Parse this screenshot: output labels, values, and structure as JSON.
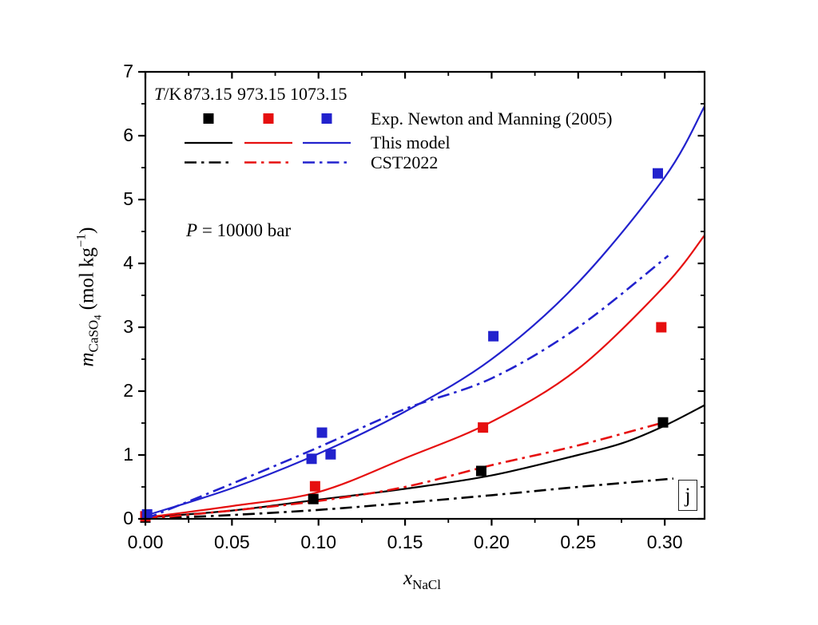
{
  "chart_data": {
    "type": "scatter+line",
    "annotation": {
      "var": "P",
      "rest": " = 10000 bar"
    },
    "xlabel": {
      "var": "x",
      "sub": "NaCl"
    },
    "ylabel": {
      "var": "m",
      "sub": "CaSO",
      "subnum": "4",
      "unit_open": "(mol kg",
      "sup": "−1",
      "unit_close": ")"
    },
    "corner_label": "j",
    "colors": {
      "k873": "#000000",
      "k973": "#e60f0f",
      "k1073": "#2222cd",
      "axis": "#000000"
    },
    "axes": {
      "xlim": [
        0,
        0.323
      ],
      "ylim": [
        0,
        7
      ],
      "x_major": [
        {
          "v": 0.0,
          "label": "0.00"
        },
        {
          "v": 0.05,
          "label": "0.05"
        },
        {
          "v": 0.1,
          "label": "0.10"
        },
        {
          "v": 0.15,
          "label": "0.15"
        },
        {
          "v": 0.2,
          "label": "0.20"
        },
        {
          "v": 0.25,
          "label": "0.25"
        },
        {
          "v": 0.3,
          "label": "0.30"
        }
      ],
      "x_minor": [
        0.025,
        0.075,
        0.125,
        0.175,
        0.225,
        0.275
      ],
      "y_major": [
        {
          "v": 0,
          "label": "0"
        },
        {
          "v": 1,
          "label": "1"
        },
        {
          "v": 2,
          "label": "2"
        },
        {
          "v": 3,
          "label": "3"
        },
        {
          "v": 4,
          "label": "4"
        },
        {
          "v": 5,
          "label": "5"
        },
        {
          "v": 6,
          "label": "6"
        },
        {
          "v": 7,
          "label": "7"
        }
      ],
      "y_minor": [
        0.5,
        1.5,
        2.5,
        3.5,
        4.5,
        5.5,
        6.5
      ]
    },
    "legend": {
      "t_var": "T",
      "t_rest": "/K",
      "temps": [
        "873.15",
        "973.15",
        "1073.15"
      ],
      "colors": [
        "#000000",
        "#e60f0f",
        "#2222cd"
      ],
      "entries": [
        {
          "marker": "square",
          "label": "Exp. Newton and Manning (2005)"
        },
        {
          "marker": "solid",
          "label": "This model"
        },
        {
          "marker": "dashdot",
          "label": "CST2022"
        }
      ]
    },
    "series": [
      {
        "id": "model-873K",
        "legend": "This model",
        "T_K": "873.15",
        "style": "solid",
        "color": "#000000",
        "points": [
          [
            0,
            0.02
          ],
          [
            0.05,
            0.13
          ],
          [
            0.1,
            0.3
          ],
          [
            0.15,
            0.47
          ],
          [
            0.2,
            0.68
          ],
          [
            0.25,
            1.0
          ],
          [
            0.276,
            1.19
          ],
          [
            0.3,
            1.46
          ],
          [
            0.323,
            1.78
          ]
        ]
      },
      {
        "id": "model-973K",
        "legend": "This model",
        "T_K": "973.15",
        "style": "solid",
        "color": "#e60f0f",
        "points": [
          [
            0,
            0.02
          ],
          [
            0.05,
            0.2
          ],
          [
            0.1,
            0.42
          ],
          [
            0.15,
            0.95
          ],
          [
            0.2,
            1.52
          ],
          [
            0.25,
            2.35
          ],
          [
            0.3,
            3.65
          ],
          [
            0.323,
            4.44
          ]
        ]
      },
      {
        "id": "model-1073K",
        "legend": "This model",
        "T_K": "1073.15",
        "style": "solid",
        "color": "#2222cd",
        "points": [
          [
            0,
            0.05
          ],
          [
            0.05,
            0.48
          ],
          [
            0.1,
            1.02
          ],
          [
            0.15,
            1.68
          ],
          [
            0.2,
            2.5
          ],
          [
            0.25,
            3.7
          ],
          [
            0.3,
            5.35
          ],
          [
            0.323,
            6.46
          ]
        ]
      },
      {
        "id": "cst2022-873K",
        "legend": "CST2022",
        "T_K": "873.15",
        "style": "dashdot",
        "color": "#000000",
        "points": [
          [
            0,
            0.0
          ],
          [
            0.05,
            0.06
          ],
          [
            0.1,
            0.14
          ],
          [
            0.15,
            0.25
          ],
          [
            0.2,
            0.37
          ],
          [
            0.25,
            0.5
          ],
          [
            0.305,
            0.63
          ]
        ]
      },
      {
        "id": "cst2022-973K",
        "legend": "CST2022",
        "T_K": "973.15",
        "style": "dashdot",
        "color": "#e60f0f",
        "points": [
          [
            0,
            0.0
          ],
          [
            0.05,
            0.13
          ],
          [
            0.1,
            0.28
          ],
          [
            0.15,
            0.5
          ],
          [
            0.2,
            0.84
          ],
          [
            0.25,
            1.15
          ],
          [
            0.302,
            1.53
          ]
        ]
      },
      {
        "id": "cst2022-1073K",
        "legend": "CST2022",
        "T_K": "1073.15",
        "style": "dashdot",
        "color": "#2222cd",
        "points": [
          [
            0,
            0.0
          ],
          [
            0.05,
            0.55
          ],
          [
            0.1,
            1.12
          ],
          [
            0.15,
            1.72
          ],
          [
            0.2,
            2.2
          ],
          [
            0.25,
            3.0
          ],
          [
            0.302,
            4.12
          ]
        ]
      },
      {
        "id": "exp-873K",
        "legend": "Exp. Newton and Manning (2005)",
        "T_K": "873.15",
        "style": "scatter",
        "color": "#000000",
        "points": [
          [
            0.0,
            0.02
          ],
          [
            0.097,
            0.31
          ],
          [
            0.194,
            0.75
          ],
          [
            0.299,
            1.51
          ]
        ]
      },
      {
        "id": "exp-973K",
        "legend": "Exp. Newton and Manning (2005)",
        "T_K": "973.15",
        "style": "scatter",
        "color": "#e60f0f",
        "points": [
          [
            0.0,
            0.04
          ],
          [
            0.098,
            0.51
          ],
          [
            0.195,
            1.43
          ],
          [
            0.298,
            3.0
          ]
        ]
      },
      {
        "id": "exp-1073K",
        "legend": "Exp. Newton and Manning (2005)",
        "T_K": "1073.15",
        "style": "scatter",
        "color": "#2222cd",
        "points": [
          [
            0.001,
            0.07
          ],
          [
            0.096,
            0.94
          ],
          [
            0.102,
            1.35
          ],
          [
            0.107,
            1.01
          ],
          [
            0.201,
            2.86
          ],
          [
            0.296,
            5.41
          ]
        ]
      }
    ]
  }
}
